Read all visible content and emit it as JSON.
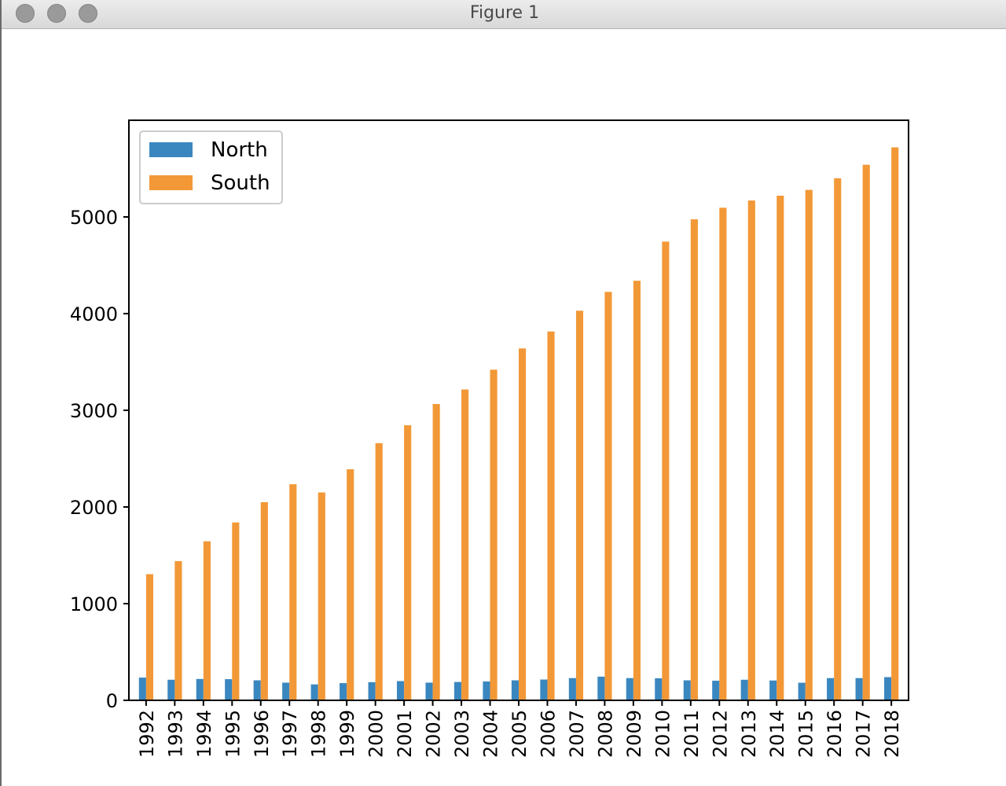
{
  "window": {
    "title": "Figure 1"
  },
  "chart_data": {
    "type": "bar",
    "categories": [
      "1992",
      "1993",
      "1994",
      "1995",
      "1996",
      "1997",
      "1998",
      "1999",
      "2000",
      "2001",
      "2002",
      "2003",
      "2004",
      "2005",
      "2006",
      "2007",
      "2008",
      "2009",
      "2010",
      "2011",
      "2012",
      "2013",
      "2014",
      "2015",
      "2016",
      "2017",
      "2018"
    ],
    "series": [
      {
        "name": "North",
        "color": "#3a87c0",
        "values": [
          235,
          213,
          221,
          219,
          207,
          183,
          165,
          178,
          188,
          199,
          183,
          190,
          195,
          207,
          215,
          230,
          245,
          230,
          228,
          207,
          203,
          213,
          205,
          182,
          230,
          230,
          240
        ]
      },
      {
        "name": "South",
        "color": "#f29837",
        "values": [
          1305,
          1440,
          1645,
          1840,
          2050,
          2235,
          2150,
          2390,
          2660,
          2845,
          3065,
          3215,
          3420,
          3640,
          3815,
          4030,
          4225,
          4340,
          4745,
          4975,
          5095,
          5170,
          5220,
          5280,
          5400,
          5540,
          5720
        ]
      }
    ],
    "xlabel": "",
    "ylabel": "",
    "title": "",
    "ylim": [
      0,
      6000
    ],
    "yticks": [
      0,
      1000,
      2000,
      3000,
      4000,
      5000
    ],
    "grid": false,
    "legend": "top-left",
    "x_tick_rotation": "vertical"
  }
}
